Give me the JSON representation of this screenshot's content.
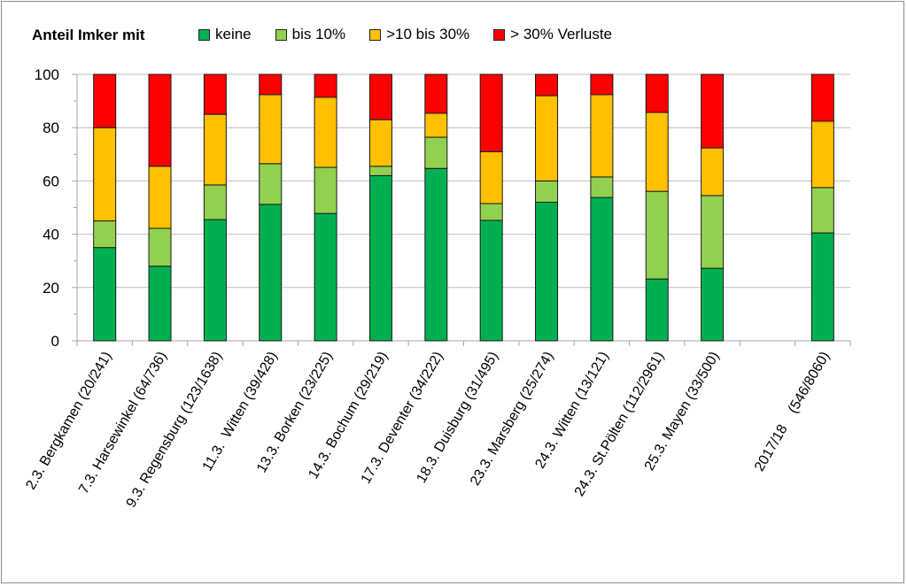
{
  "chart_data": {
    "type": "bar",
    "stacked": true,
    "title": "Anteil Imker mit",
    "xlabel": "",
    "ylabel": "",
    "ylim": [
      0,
      100
    ],
    "yticks": [
      0,
      20,
      40,
      60,
      80,
      100
    ],
    "grid": true,
    "legend_position": "top",
    "categories": [
      "2.3. Bergkamen (20/241)",
      "7.3. Harsewinkel (64/736)",
      "9.3. Regensburg (123/1638)",
      "11.3.  Witten (39/428)",
      "13.3. Borken (23/225)",
      "14.3. Bochum (29/219)",
      "17.3. Deventer (34/222)",
      "18.3. Duisburg (31/495)",
      "23.3. Marsberg (25/274)",
      "24.3. Witten (13/121)",
      "24.3. St.Pölten (112/2961)",
      "25.3. Mayen (33/500)",
      "",
      "2017/18    (546/8060)"
    ],
    "series": [
      {
        "name": "keine",
        "color": "#00b050",
        "values": [
          35,
          28,
          45.5,
          51.2,
          47.8,
          62,
          64.7,
          45.2,
          52,
          53.8,
          23.2,
          27.2,
          null,
          40.5
        ]
      },
      {
        "name": "bis 10%",
        "color": "#92d050",
        "values": [
          10,
          14.2,
          13,
          15.3,
          17.3,
          3.5,
          11.7,
          6.3,
          8,
          7.7,
          32.9,
          27.3,
          null,
          17
        ]
      },
      {
        "name": ">10 bis 30%",
        "color": "#ffc000",
        "values": [
          35,
          23.3,
          26.5,
          25.9,
          26.3,
          17.5,
          9,
          19.5,
          32,
          30.9,
          29.6,
          17.9,
          null,
          24.9
        ]
      },
      {
        "name": "> 30% Verluste",
        "color": "#ff0000",
        "values": [
          20,
          34.5,
          15,
          7.6,
          8.6,
          17,
          14.6,
          29,
          8,
          7.6,
          14.3,
          27.6,
          null,
          17.6
        ]
      }
    ]
  }
}
